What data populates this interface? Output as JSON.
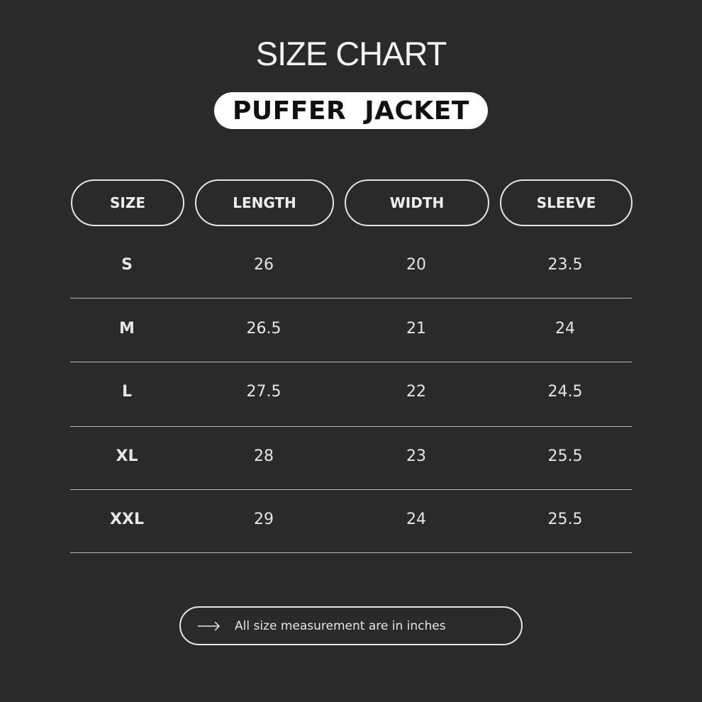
{
  "title": "SIZE CHART",
  "subtitle": "PUFFER  JACKET",
  "headers": [
    "SIZE",
    "LENGTH",
    "WIDTH",
    "SLEEVE"
  ],
  "rows": [
    [
      "S",
      "26",
      "20",
      "23.5"
    ],
    [
      "M",
      "26.5",
      "21",
      "24"
    ],
    [
      "L",
      "27.5",
      "22",
      "24.5"
    ],
    [
      "XL",
      "28",
      "23",
      "25.5"
    ],
    [
      "XXL",
      "29",
      "24",
      "25.5"
    ]
  ],
  "footer": {
    "icon": "arrow-right-icon",
    "note": "All size measurement are in inches"
  },
  "colors": {
    "background": "#2a2a2a",
    "text": "#ececec",
    "pill": "#ffffff"
  }
}
